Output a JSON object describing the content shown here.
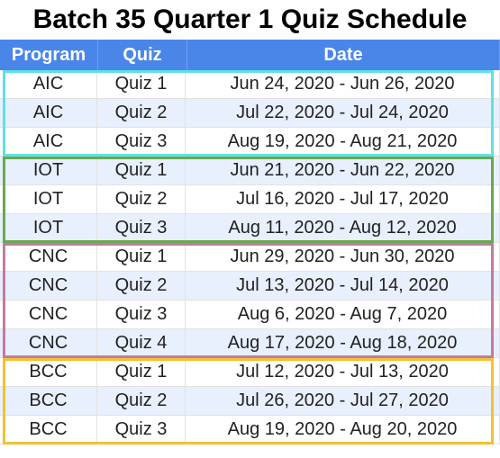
{
  "title": "Batch 35 Quarter 1 Quiz Schedule",
  "headers": {
    "program": "Program",
    "quiz": "Quiz",
    "date": "Date"
  },
  "groups": [
    {
      "color": "#5fe0e6",
      "rows": [
        {
          "program": "AIC",
          "quiz": "Quiz 1",
          "date": "Jun 24, 2020 - Jun 26, 2020"
        },
        {
          "program": "AIC",
          "quiz": "Quiz 2",
          "date": "Jul 22, 2020 - Jul 24, 2020"
        },
        {
          "program": "AIC",
          "quiz": "Quiz 3",
          "date": "Aug 19, 2020 - Aug 21, 2020"
        }
      ]
    },
    {
      "color": "#6aa84f",
      "rows": [
        {
          "program": "IOT",
          "quiz": "Quiz 1",
          "date": "Jun 21, 2020 - Jun 22, 2020"
        },
        {
          "program": "IOT",
          "quiz": "Quiz 2",
          "date": "Jul 16, 2020 - Jul 17, 2020"
        },
        {
          "program": "IOT",
          "quiz": "Quiz 3",
          "date": "Aug 11, 2020 - Aug 12, 2020"
        }
      ]
    },
    {
      "color": "#c27ba0",
      "rows": [
        {
          "program": "CNC",
          "quiz": "Quiz 1",
          "date": "Jun 29, 2020 - Jun 30, 2020"
        },
        {
          "program": "CNC",
          "quiz": "Quiz 2",
          "date": "Jul 13, 2020 - Jul 14, 2020"
        },
        {
          "program": "CNC",
          "quiz": "Quiz 3",
          "date": "Aug 6, 2020 - Aug 7, 2020"
        },
        {
          "program": "CNC",
          "quiz": "Quiz 4",
          "date": "Aug 17, 2020 - Aug 18, 2020"
        }
      ]
    },
    {
      "color": "#f1c232",
      "rows": [
        {
          "program": "BCC",
          "quiz": "Quiz 1",
          "date": "Jul 12, 2020 - Jul 13, 2020"
        },
        {
          "program": "BCC",
          "quiz": "Quiz 2",
          "date": "Jul 26, 2020 - Jul 27, 2020"
        },
        {
          "program": "BCC",
          "quiz": "Quiz 3",
          "date": "Aug 19, 2020 - Aug 20, 2020"
        }
      ]
    }
  ]
}
